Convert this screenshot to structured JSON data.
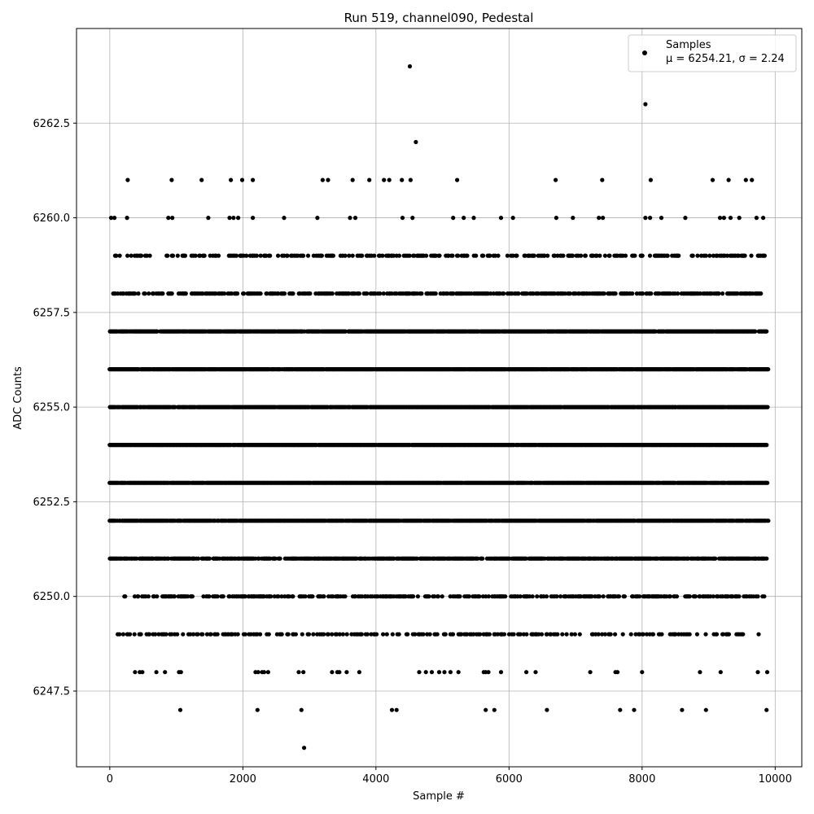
{
  "chart_data": {
    "type": "scatter",
    "title": "Run 519, channel090, Pedestal",
    "xlabel": "Sample #",
    "ylabel": "ADC Counts",
    "xlim": [
      -500,
      10400
    ],
    "ylim": [
      6245.5,
      6265.0
    ],
    "xticks": [
      0,
      2000,
      4000,
      6000,
      8000,
      10000
    ],
    "xtick_labels": [
      "0",
      "2000",
      "4000",
      "6000",
      "8000",
      "10000"
    ],
    "yticks": [
      6247.5,
      6250.0,
      6252.5,
      6255.0,
      6257.5,
      6260.0,
      6262.5
    ],
    "ytick_labels": [
      "6247.5",
      "6250.0",
      "6252.5",
      "6255.0",
      "6257.5",
      "6260.0",
      "6262.5"
    ],
    "grid": true,
    "legend": {
      "placement": "top-right",
      "label": "Samples",
      "stats": "μ = 6254.21, σ = 2.24"
    },
    "marker_color": "#000000",
    "n_samples": 10000,
    "levels": [
      {
        "y": 6264,
        "x": [
          4510
        ]
      },
      {
        "y": 6263,
        "x": [
          8050
        ]
      },
      {
        "y": 6262,
        "x": [
          4600
        ]
      },
      {
        "y": 6261,
        "x": [
          270,
          930,
          1380,
          1820,
          1990,
          2150,
          3200,
          3280,
          3650,
          3900,
          4120,
          4200,
          4390,
          4520,
          5220,
          6700,
          7400,
          8130,
          9060,
          9300,
          9560,
          9650
        ]
      },
      {
        "y": 6260,
        "x": [
          20,
          70,
          260,
          880,
          940,
          1480,
          1800,
          1860,
          1930,
          2150,
          2620,
          3120,
          3610,
          3690,
          4400,
          4550,
          5160,
          5320,
          5470,
          5880,
          6060,
          6710,
          6960,
          7350,
          7410,
          8050,
          8120,
          8290,
          8650,
          9170,
          9230,
          9330,
          9460,
          9720,
          9820
        ]
      },
      {
        "y": 6259,
        "density": 0.35,
        "x_range": [
          40,
          9840
        ]
      },
      {
        "y": 6258,
        "density": 0.55,
        "x_range": [
          40,
          9800
        ]
      },
      {
        "y": 6257,
        "density": 0.92,
        "x_range": [
          0,
          9870
        ]
      },
      {
        "y": 6256,
        "density": 0.96,
        "x_range": [
          0,
          9910
        ]
      },
      {
        "y": 6255,
        "density": 0.97,
        "x_range": [
          0,
          9890
        ]
      },
      {
        "y": 6254,
        "density": 0.98,
        "x_range": [
          0,
          9880
        ]
      },
      {
        "y": 6253,
        "density": 0.97,
        "x_range": [
          0,
          9890
        ]
      },
      {
        "y": 6252,
        "density": 0.95,
        "x_range": [
          0,
          9900
        ]
      },
      {
        "y": 6251,
        "density": 0.8,
        "x_range": [
          0,
          9880
        ]
      },
      {
        "y": 6250,
        "density": 0.45,
        "x_range": [
          220,
          9860
        ]
      },
      {
        "y": 6249,
        "density": 0.28,
        "x_range": [
          120,
          9880
        ]
      },
      {
        "y": 6248,
        "x": [
          380,
          450,
          490,
          700,
          830,
          1040,
          1070,
          2190,
          2230,
          2290,
          2320,
          2380,
          2840,
          2910,
          3340,
          3420,
          3450,
          3560,
          3750,
          4650,
          4750,
          4840,
          4950,
          5030,
          5120,
          5240,
          5620,
          5650,
          5690,
          5880,
          6260,
          6400,
          7220,
          7600,
          7630,
          8000,
          8870,
          9180,
          9740,
          9880
        ]
      },
      {
        "y": 6247,
        "x": [
          1060,
          2220,
          2880,
          4240,
          4310,
          5650,
          5780,
          6570,
          7670,
          7880,
          8600,
          8960,
          9870
        ]
      },
      {
        "y": 6246,
        "x": [
          2920
        ]
      }
    ]
  }
}
